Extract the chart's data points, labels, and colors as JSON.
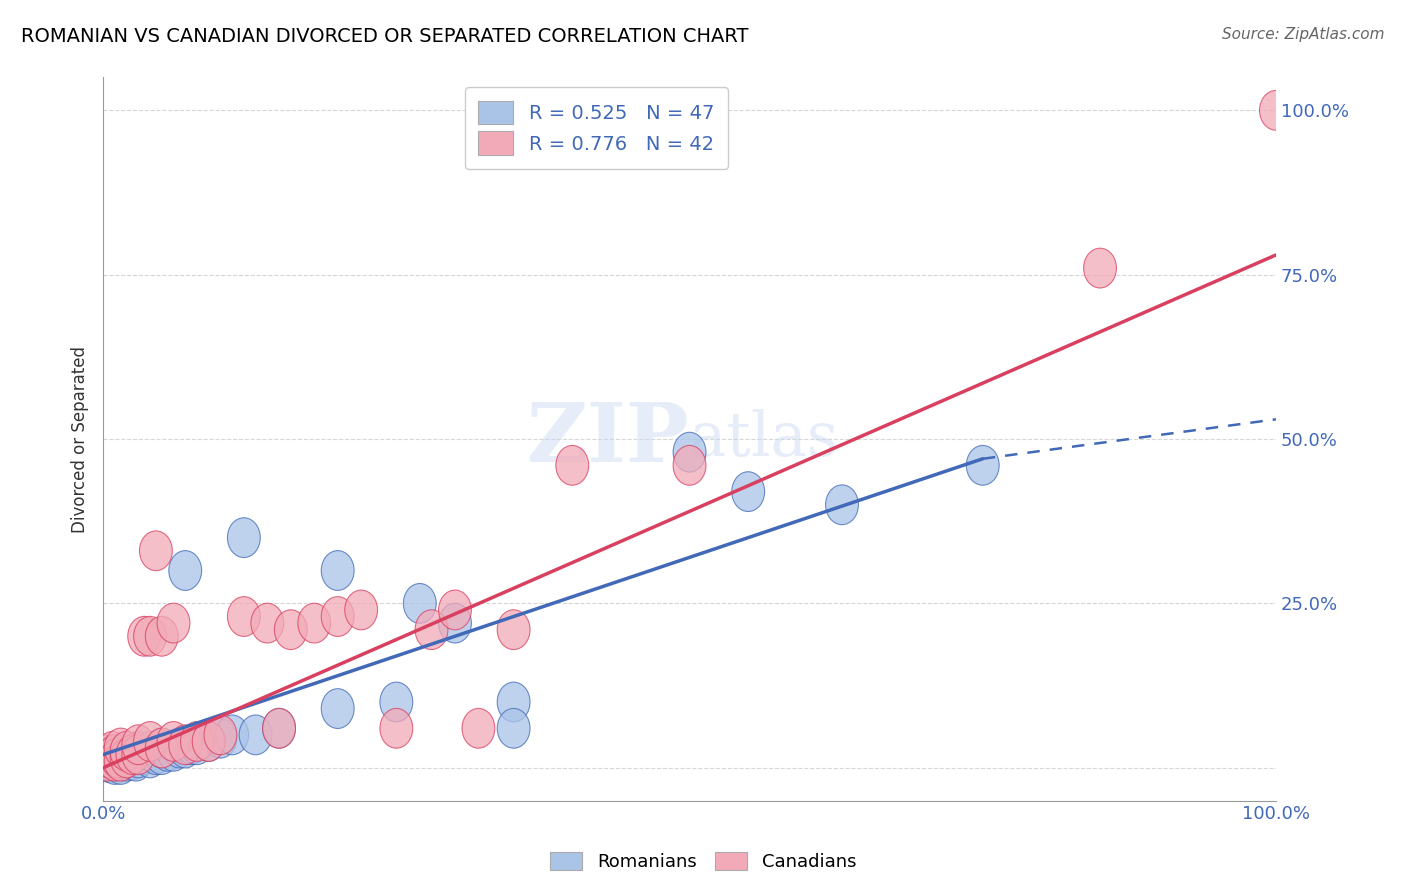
{
  "title": "ROMANIAN VS CANADIAN DIVORCED OR SEPARATED CORRELATION CHART",
  "source": "Source: ZipAtlas.com",
  "ylabel": "Divorced or Separated",
  "xlim": [
    0.0,
    100.0
  ],
  "ylim": [
    -5.0,
    105.0
  ],
  "romanian_R": 0.525,
  "romanian_N": 47,
  "canadian_R": 0.776,
  "canadian_N": 42,
  "romanian_color": "#aac4e8",
  "canadian_color": "#f2aab8",
  "romanian_line_color": "#4169b8",
  "canadian_line_color": "#d94060",
  "watermark": "ZIPatlas",
  "legend_romanians": "Romanians",
  "legend_canadians": "Canadians",
  "rom_line_x0": 0.0,
  "rom_line_y0": 2.0,
  "rom_line_x1": 75.0,
  "rom_line_y1": 47.0,
  "rom_dash_x0": 75.0,
  "rom_dash_y0": 47.0,
  "rom_dash_x1": 100.0,
  "rom_dash_y1": 53.0,
  "can_line_x0": 0.0,
  "can_line_y0": 0.0,
  "can_line_x1": 100.0,
  "can_line_y1": 78.0,
  "romanian_points": [
    [
      0.0,
      1.5
    ],
    [
      0.3,
      1.0
    ],
    [
      0.5,
      0.8
    ],
    [
      0.8,
      1.2
    ],
    [
      1.0,
      0.5
    ],
    [
      1.0,
      1.8
    ],
    [
      1.2,
      1.0
    ],
    [
      1.5,
      0.5
    ],
    [
      1.5,
      2.0
    ],
    [
      1.8,
      1.5
    ],
    [
      2.0,
      1.0
    ],
    [
      2.0,
      2.0
    ],
    [
      2.2,
      1.5
    ],
    [
      2.5,
      1.2
    ],
    [
      2.8,
      1.0
    ],
    [
      3.0,
      1.5
    ],
    [
      3.0,
      2.5
    ],
    [
      3.5,
      2.0
    ],
    [
      4.0,
      1.5
    ],
    [
      4.0,
      2.5
    ],
    [
      4.5,
      2.0
    ],
    [
      5.0,
      2.0
    ],
    [
      5.0,
      3.0
    ],
    [
      5.5,
      2.5
    ],
    [
      6.0,
      2.5
    ],
    [
      6.5,
      3.0
    ],
    [
      7.0,
      3.0
    ],
    [
      7.5,
      3.5
    ],
    [
      8.0,
      3.5
    ],
    [
      9.0,
      4.0
    ],
    [
      10.0,
      4.5
    ],
    [
      11.0,
      5.0
    ],
    [
      13.0,
      5.0
    ],
    [
      15.0,
      6.0
    ],
    [
      7.0,
      30.0
    ],
    [
      20.0,
      30.0
    ],
    [
      20.0,
      9.0
    ],
    [
      25.0,
      10.0
    ],
    [
      27.0,
      25.0
    ],
    [
      30.0,
      22.0
    ],
    [
      35.0,
      10.0
    ],
    [
      35.0,
      6.0
    ],
    [
      50.0,
      48.0
    ],
    [
      55.0,
      42.0
    ],
    [
      63.0,
      40.0
    ],
    [
      75.0,
      46.0
    ],
    [
      12.0,
      35.0
    ]
  ],
  "canadian_points": [
    [
      0.0,
      2.0
    ],
    [
      0.3,
      1.0
    ],
    [
      0.5,
      1.5
    ],
    [
      0.8,
      2.5
    ],
    [
      1.0,
      1.0
    ],
    [
      1.0,
      2.0
    ],
    [
      1.2,
      1.5
    ],
    [
      1.5,
      1.0
    ],
    [
      1.5,
      3.0
    ],
    [
      2.0,
      1.5
    ],
    [
      2.0,
      2.5
    ],
    [
      2.5,
      2.0
    ],
    [
      3.0,
      2.0
    ],
    [
      3.0,
      3.5
    ],
    [
      3.5,
      20.0
    ],
    [
      4.0,
      4.0
    ],
    [
      4.0,
      20.0
    ],
    [
      4.5,
      33.0
    ],
    [
      5.0,
      3.0
    ],
    [
      5.0,
      20.0
    ],
    [
      6.0,
      4.0
    ],
    [
      6.0,
      22.0
    ],
    [
      7.0,
      3.5
    ],
    [
      8.0,
      4.0
    ],
    [
      9.0,
      4.0
    ],
    [
      10.0,
      5.0
    ],
    [
      12.0,
      23.0
    ],
    [
      14.0,
      22.0
    ],
    [
      15.0,
      6.0
    ],
    [
      16.0,
      21.0
    ],
    [
      18.0,
      22.0
    ],
    [
      20.0,
      23.0
    ],
    [
      22.0,
      24.0
    ],
    [
      25.0,
      6.0
    ],
    [
      28.0,
      21.0
    ],
    [
      30.0,
      24.0
    ],
    [
      32.0,
      6.0
    ],
    [
      35.0,
      21.0
    ],
    [
      40.0,
      46.0
    ],
    [
      50.0,
      46.0
    ],
    [
      85.0,
      76.0
    ],
    [
      100.0,
      100.0
    ]
  ]
}
